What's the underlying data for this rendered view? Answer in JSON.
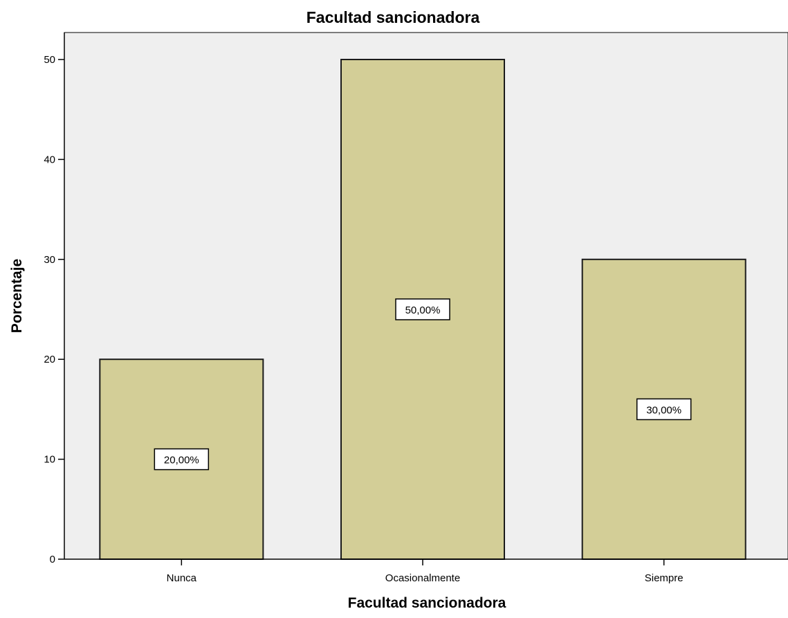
{
  "chart_data": {
    "type": "bar",
    "title": "Facultad sancionadora",
    "xlabel": "Facultad sancionadora",
    "ylabel": "Porcentaje",
    "categories": [
      "Nunca",
      "Ocasionalmente",
      "Siempre"
    ],
    "values": [
      20,
      50,
      30
    ],
    "data_labels": [
      "20,00%",
      "50,00%",
      "30,00%"
    ],
    "y_ticks": [
      0,
      10,
      20,
      30,
      40,
      50
    ],
    "ylim": [
      0,
      52.7
    ],
    "grid": false,
    "legend": "none",
    "colors": {
      "plot_background": "#efefef",
      "bar_fill": "#d3ce97",
      "bar_stroke": "#1a1a1a",
      "label_box": "#ffffff"
    }
  }
}
